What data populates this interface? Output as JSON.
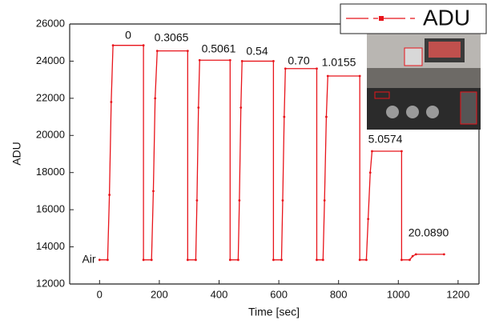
{
  "chart_data": {
    "type": "line",
    "x_label": "Time [sec]",
    "y_label": "ADU",
    "xlim": [
      -100,
      1270
    ],
    "ylim": [
      12000,
      26000
    ],
    "xticks": [
      0,
      200,
      400,
      600,
      800,
      1000,
      1200
    ],
    "yticks": [
      12000,
      14000,
      16000,
      18000,
      20000,
      22000,
      24000,
      26000
    ],
    "legend": "upper right",
    "series": [
      {
        "name": "ADU",
        "color": "#e8141b",
        "x": [
          0,
          27,
          33,
          39,
          45,
          147,
          147,
          174,
          180,
          186,
          193,
          295,
          295,
          322,
          326,
          331,
          335,
          437,
          437,
          464,
          468,
          473,
          477,
          582,
          582,
          609,
          613,
          618,
          622,
          727,
          727,
          748,
          753,
          759,
          764,
          871,
          871,
          893,
          899,
          906,
          912,
          1011,
          1011,
          1038,
          1048,
          1059,
          1153
        ],
        "values": [
          13300,
          13300,
          16800,
          21800,
          24850,
          24850,
          13300,
          13300,
          17000,
          22000,
          24550,
          24550,
          13300,
          13300,
          16500,
          21500,
          24050,
          24050,
          13300,
          13300,
          16500,
          21500,
          24000,
          24000,
          13300,
          13300,
          16500,
          21000,
          23600,
          23600,
          13300,
          13300,
          16500,
          21000,
          23200,
          23200,
          13300,
          13300,
          15500,
          18000,
          19150,
          19150,
          13300,
          13300,
          13500,
          13600,
          13600
        ]
      }
    ],
    "annotations": [
      {
        "text": "0"
      },
      {
        "text": "0.3065"
      },
      {
        "text": "0.5061"
      },
      {
        "text": "0.54"
      },
      {
        "text": "0.70"
      },
      {
        "text": "1.0155"
      },
      {
        "text": "5.0574"
      },
      {
        "text": "20.0890"
      },
      {
        "text": "Air"
      }
    ]
  }
}
